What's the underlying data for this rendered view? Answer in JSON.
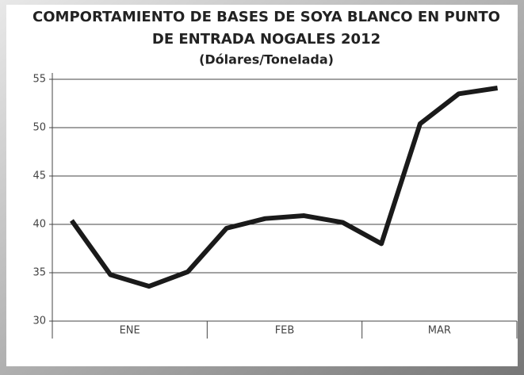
{
  "chart_data": {
    "type": "line",
    "title": [
      "COMPORTAMIENTO DE BASES DE SOYA BLANCO EN PUNTO",
      "DE ENTRADA NOGALES 2012"
    ],
    "subtitle": "(Dólares/Tonelada)",
    "groups": [
      "ENE",
      "FEB",
      "MAR"
    ],
    "values": [
      40.4,
      34.8,
      33.6,
      35.1,
      39.6,
      40.6,
      40.9,
      40.2,
      38.0,
      50.4,
      53.5,
      54.1
    ],
    "color": "#1a1a1a",
    "ylim": [
      30,
      55
    ],
    "yticks": [
      30,
      35,
      40,
      45,
      50,
      55
    ],
    "grid": true
  }
}
